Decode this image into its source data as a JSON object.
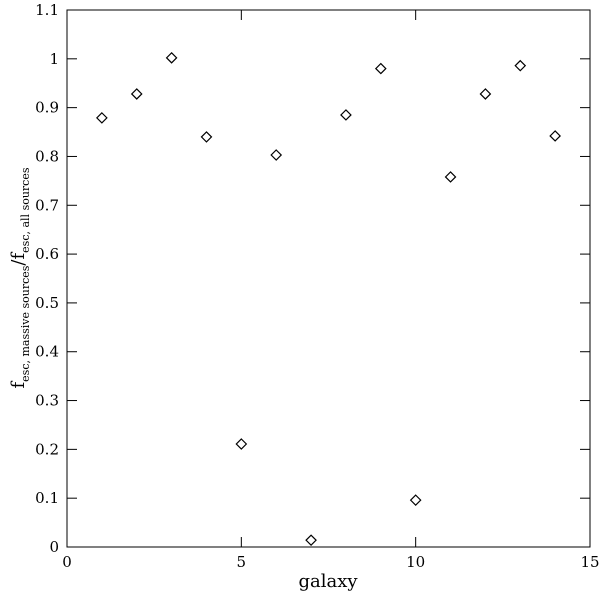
{
  "chart_data": {
    "type": "scatter",
    "xlabel": "galaxy",
    "ylabel": {
      "f1": "f",
      "sub1": "esc, massive sources",
      "slash": "/",
      "f2": "f",
      "sub2": "esc, all sources"
    },
    "x": [
      1,
      2,
      3,
      4,
      5,
      6,
      7,
      8,
      9,
      10,
      11,
      12,
      13,
      14
    ],
    "values": [
      0.879,
      0.928,
      1.002,
      0.84,
      0.211,
      0.803,
      0.014,
      0.885,
      0.98,
      0.096,
      0.758,
      0.928,
      0.986,
      0.842
    ],
    "color": "#000000",
    "xlim": [
      0,
      15
    ],
    "xticks": [
      0,
      5,
      10,
      15
    ],
    "ylim": [
      0,
      1.1
    ],
    "yticks": [
      0,
      0.1,
      0.2,
      0.3,
      0.4,
      0.5,
      0.6,
      0.7,
      0.8,
      0.9,
      1,
      1.1
    ]
  }
}
